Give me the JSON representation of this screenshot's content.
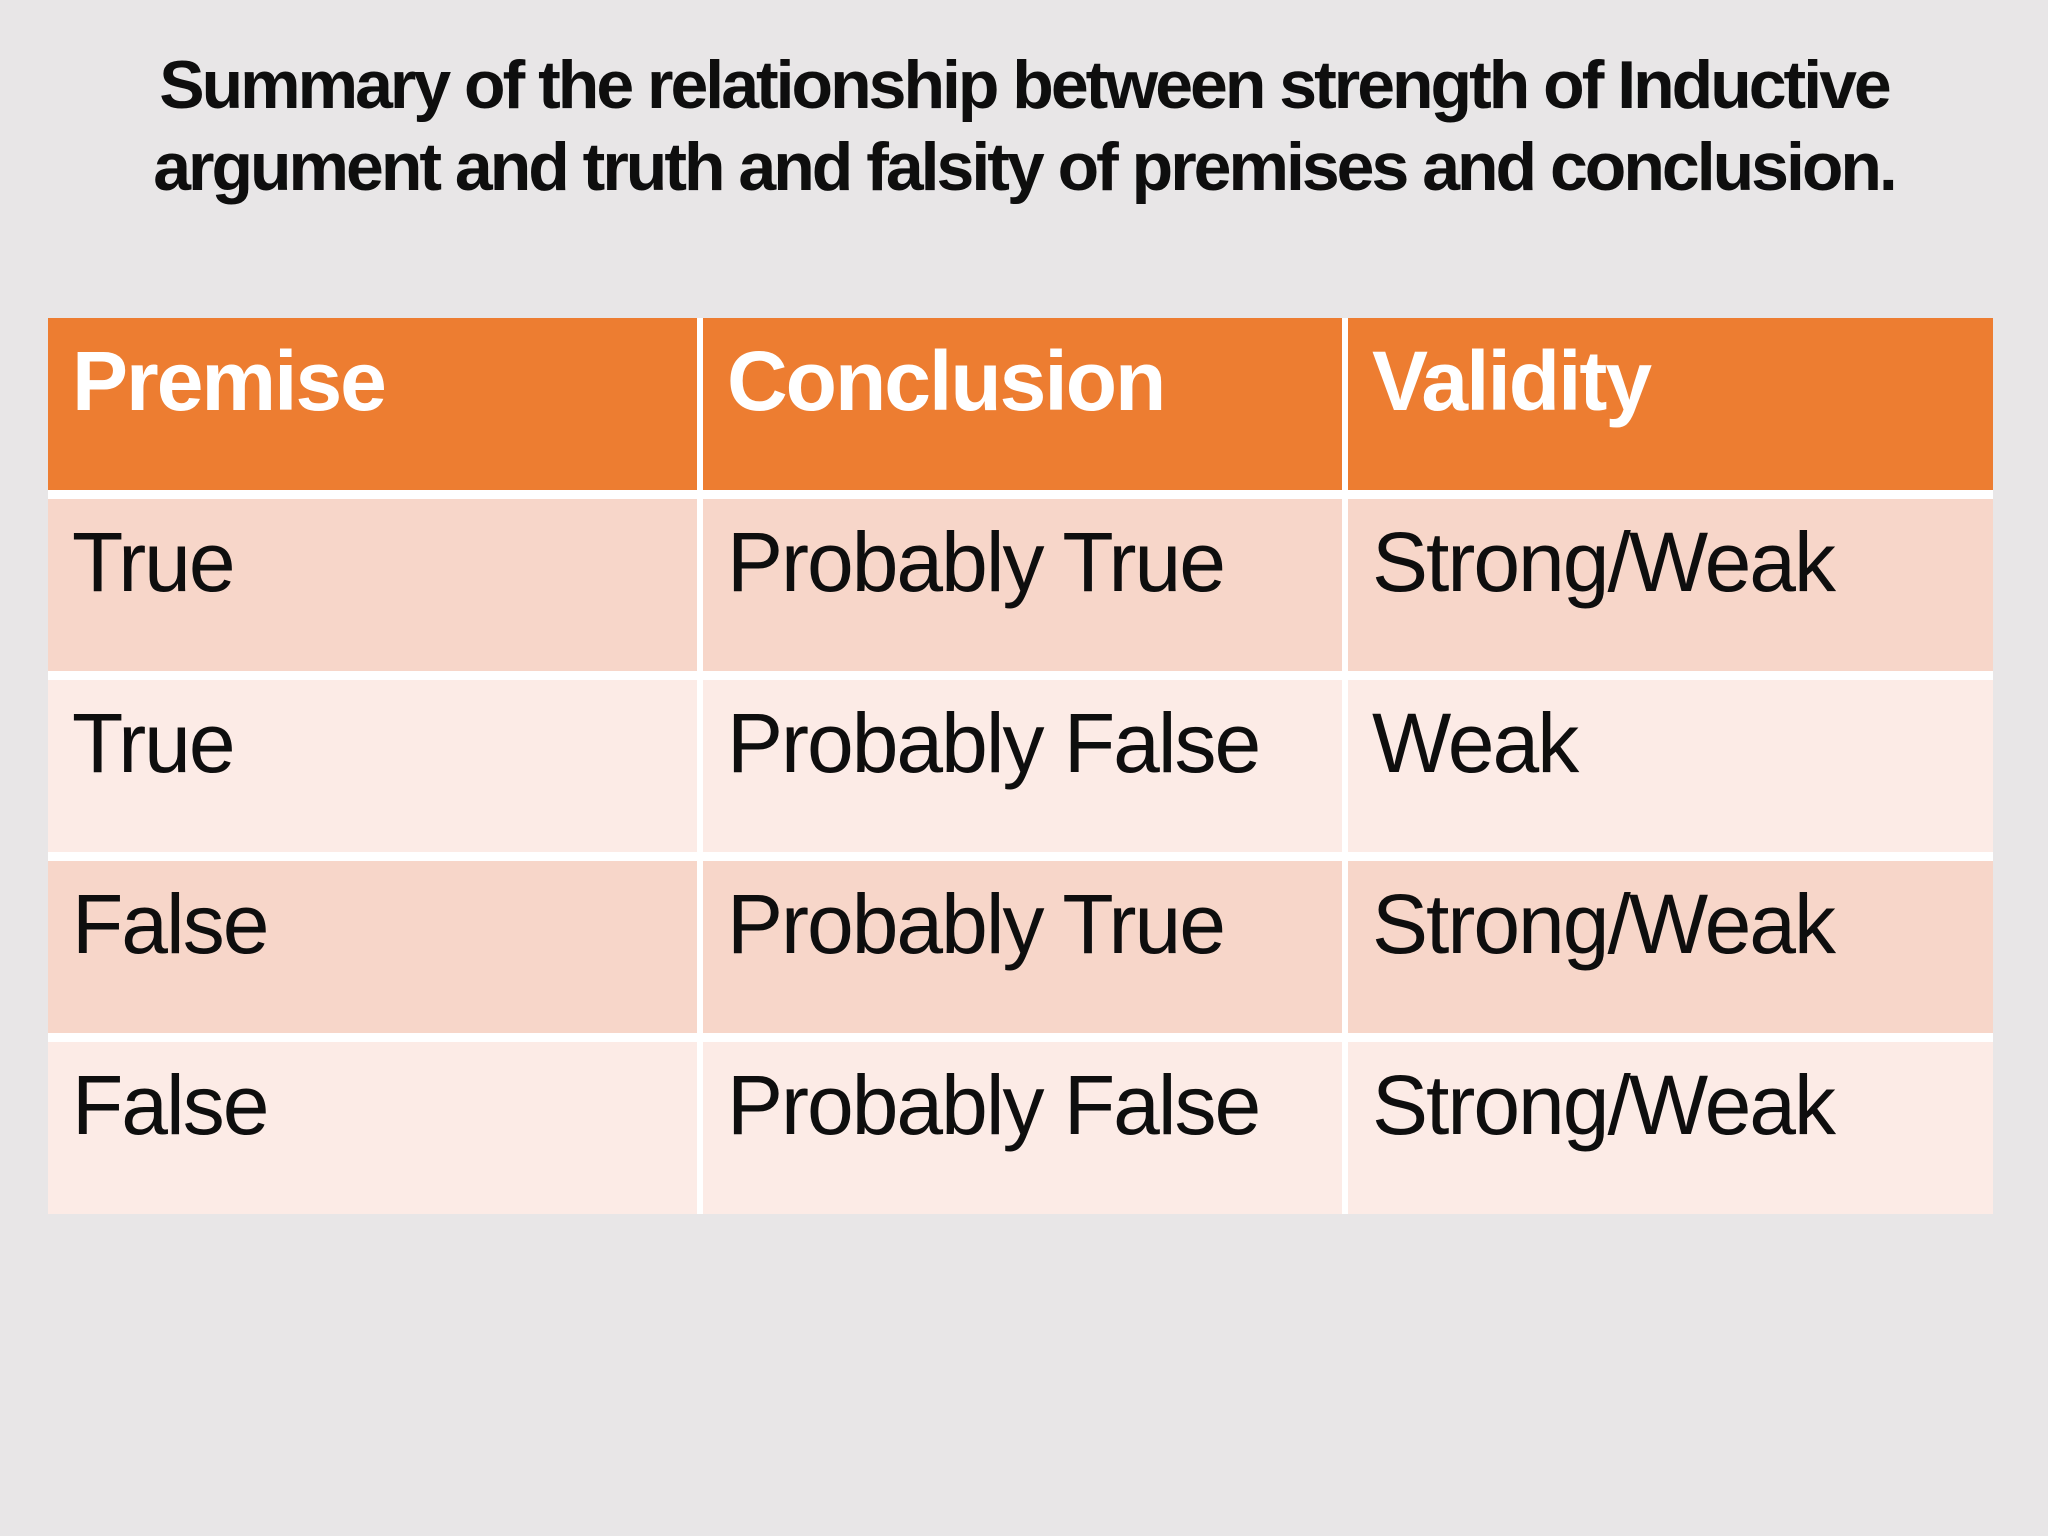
{
  "slide": {
    "title_lines": [
      "Summary of the relationship between strength of Inductive",
      "argument and truth and falsity of premises and conclusion."
    ]
  },
  "table": {
    "headers": [
      "Premise",
      "Conclusion",
      "Validity"
    ],
    "rows": [
      [
        "True",
        "Probably True",
        "Strong/Weak"
      ],
      [
        "True",
        "Probably False",
        "Weak"
      ],
      [
        "False",
        "Probably True",
        "Strong/Weak"
      ],
      [
        "False",
        "Probably False",
        "Strong/Weak"
      ]
    ]
  },
  "colors": {
    "background": "#e8e6e7",
    "header_bg": "#ed7d31",
    "header_text": "#ffffff",
    "band_dark": "#f7d6c9",
    "band_light": "#fcebe6",
    "cell_text": "#0e0e0e",
    "title_text": "#0e0e0e",
    "divider": "#ffffff"
  }
}
